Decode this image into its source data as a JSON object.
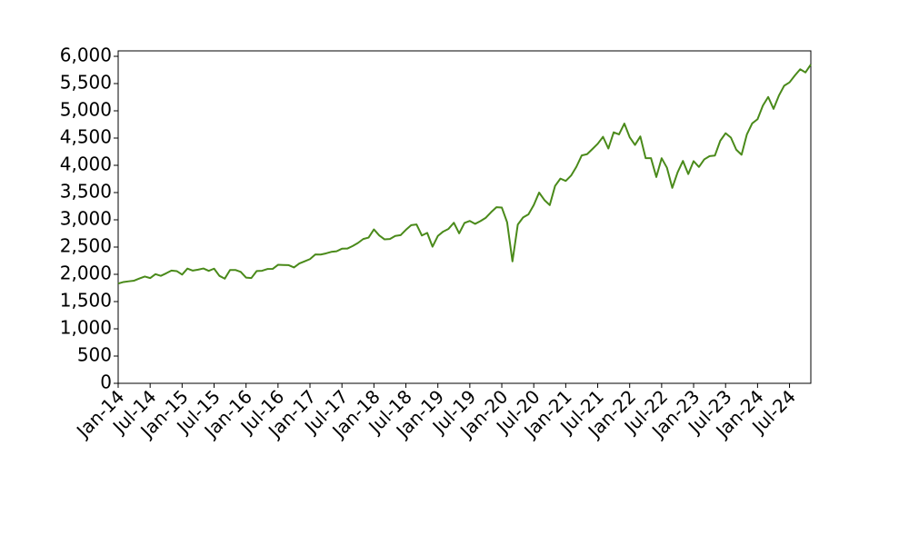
{
  "chart_data": {
    "type": "line",
    "color": "#4a8a1a",
    "x": [
      "2014-01",
      "2014-02",
      "2014-03",
      "2014-04",
      "2014-05",
      "2014-06",
      "2014-07",
      "2014-08",
      "2014-09",
      "2014-10",
      "2014-11",
      "2014-12",
      "2015-01",
      "2015-02",
      "2015-03",
      "2015-04",
      "2015-05",
      "2015-06",
      "2015-07",
      "2015-08",
      "2015-09",
      "2015-10",
      "2015-11",
      "2015-12",
      "2016-01",
      "2016-02",
      "2016-03",
      "2016-04",
      "2016-05",
      "2016-06",
      "2016-07",
      "2016-08",
      "2016-09",
      "2016-10",
      "2016-11",
      "2016-12",
      "2017-01",
      "2017-02",
      "2017-03",
      "2017-04",
      "2017-05",
      "2017-06",
      "2017-07",
      "2017-08",
      "2017-09",
      "2017-10",
      "2017-11",
      "2017-12",
      "2018-01",
      "2018-02",
      "2018-03",
      "2018-04",
      "2018-05",
      "2018-06",
      "2018-07",
      "2018-08",
      "2018-09",
      "2018-10",
      "2018-11",
      "2018-12",
      "2019-01",
      "2019-02",
      "2019-03",
      "2019-04",
      "2019-05",
      "2019-06",
      "2019-07",
      "2019-08",
      "2019-09",
      "2019-10",
      "2019-11",
      "2019-12",
      "2020-01",
      "2020-02",
      "2020-03",
      "2020-04",
      "2020-05",
      "2020-06",
      "2020-07",
      "2020-08",
      "2020-09",
      "2020-10",
      "2020-11",
      "2020-12",
      "2021-01",
      "2021-02",
      "2021-03",
      "2021-04",
      "2021-05",
      "2021-06",
      "2021-07",
      "2021-08",
      "2021-09",
      "2021-10",
      "2021-11",
      "2021-12",
      "2022-01",
      "2022-02",
      "2022-03",
      "2022-04",
      "2022-05",
      "2022-06",
      "2022-07",
      "2022-08",
      "2022-09",
      "2022-10",
      "2022-11",
      "2022-12",
      "2023-01",
      "2023-02",
      "2023-03",
      "2023-04",
      "2023-05",
      "2023-06",
      "2023-07",
      "2023-08",
      "2023-09",
      "2023-10",
      "2023-11",
      "2023-12",
      "2024-01",
      "2024-02",
      "2024-03",
      "2024-04",
      "2024-05",
      "2024-06",
      "2024-07",
      "2024-08",
      "2024-09",
      "2024-10",
      "2024-11"
    ],
    "values": [
      1830,
      1859,
      1872,
      1884,
      1924,
      1960,
      1931,
      2003,
      1972,
      2018,
      2068,
      2059,
      1995,
      2105,
      2068,
      2086,
      2107,
      2063,
      2104,
      1972,
      1920,
      2079,
      2080,
      2044,
      1940,
      1932,
      2060,
      2065,
      2097,
      2099,
      2174,
      2171,
      2168,
      2126,
      2199,
      2239,
      2279,
      2364,
      2363,
      2384,
      2412,
      2423,
      2470,
      2472,
      2519,
      2575,
      2648,
      2674,
      2824,
      2714,
      2641,
      2648,
      2705,
      2718,
      2816,
      2902,
      2914,
      2712,
      2760,
      2507,
      2704,
      2784,
      2834,
      2946,
      2752,
      2942,
      2980,
      2926,
      2977,
      3038,
      3141,
      3231,
      3226,
      2954,
      2237,
      2912,
      3044,
      3100,
      3271,
      3500,
      3363,
      3270,
      3622,
      3756,
      3714,
      3811,
      3973,
      4181,
      4204,
      4298,
      4395,
      4523,
      4308,
      4605,
      4567,
      4766,
      4516,
      4374,
      4530,
      4132,
      4132,
      3785,
      4130,
      3955,
      3586,
      3872,
      4080,
      3840,
      4077,
      3970,
      4109,
      4169,
      4180,
      4450,
      4589,
      4508,
      4288,
      4194,
      4568,
      4770,
      4846,
      5096,
      5254,
      5036,
      5278,
      5460,
      5522,
      5648,
      5762,
      5705,
      5850
    ],
    "xlim": [
      "2014-01",
      "2024-11"
    ],
    "xticks": [
      {
        "value": "2014-01",
        "label": "Jan-14"
      },
      {
        "value": "2014-07",
        "label": "Jul-14"
      },
      {
        "value": "2015-01",
        "label": "Jan-15"
      },
      {
        "value": "2015-07",
        "label": "Jul-15"
      },
      {
        "value": "2016-01",
        "label": "Jan-16"
      },
      {
        "value": "2016-07",
        "label": "Jul-16"
      },
      {
        "value": "2017-01",
        "label": "Jan-17"
      },
      {
        "value": "2017-07",
        "label": "Jul-17"
      },
      {
        "value": "2018-01",
        "label": "Jan-18"
      },
      {
        "value": "2018-07",
        "label": "Jul-18"
      },
      {
        "value": "2019-01",
        "label": "Jan-19"
      },
      {
        "value": "2019-07",
        "label": "Jul-19"
      },
      {
        "value": "2020-01",
        "label": "Jan-20"
      },
      {
        "value": "2020-07",
        "label": "Jul-20"
      },
      {
        "value": "2021-01",
        "label": "Jan-21"
      },
      {
        "value": "2021-07",
        "label": "Jul-21"
      },
      {
        "value": "2022-01",
        "label": "Jan-22"
      },
      {
        "value": "2022-07",
        "label": "Jul-22"
      },
      {
        "value": "2023-01",
        "label": "Jan-23"
      },
      {
        "value": "2023-07",
        "label": "Jul-23"
      },
      {
        "value": "2024-01",
        "label": "Jan-24"
      },
      {
        "value": "2024-07",
        "label": "Jul-24"
      }
    ],
    "ylim": [
      0,
      6100
    ],
    "yticks": [
      0,
      500,
      {
        "value": 1000,
        "label": "1,000"
      },
      {
        "value": 1500,
        "label": "1,500"
      },
      {
        "value": 2000,
        "label": "2,000"
      },
      {
        "value": 2500,
        "label": "2,500"
      },
      {
        "value": 3000,
        "label": "3,000"
      },
      {
        "value": 3500,
        "label": "3,500"
      },
      {
        "value": 4000,
        "label": "4,000"
      },
      {
        "value": 4500,
        "label": "4,500"
      },
      {
        "value": 5000,
        "label": "5,000"
      },
      {
        "value": 5500,
        "label": "5,500"
      },
      {
        "value": 6000,
        "label": "6,000"
      }
    ]
  }
}
